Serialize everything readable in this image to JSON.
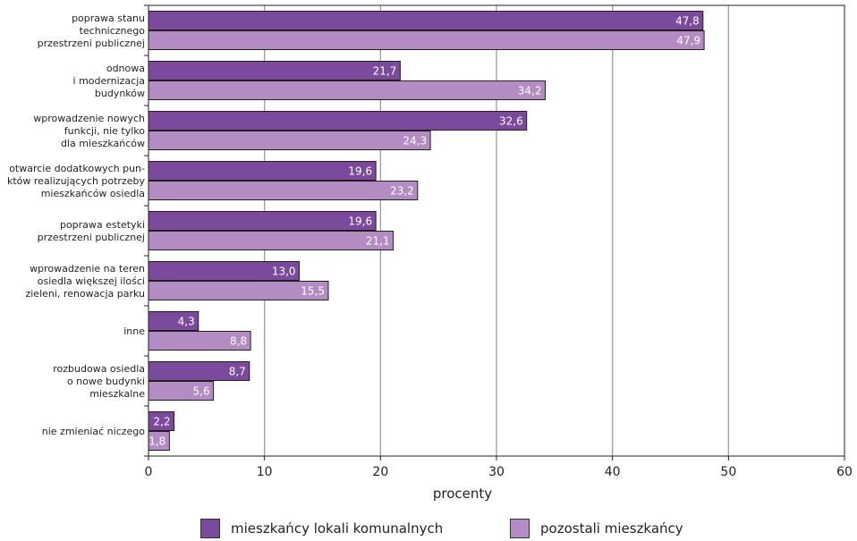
{
  "chart_data": {
    "type": "bar",
    "orientation": "horizontal",
    "categories": [
      [
        "poprawa stanu",
        "technicznego",
        "przestrzeni publicznej"
      ],
      [
        "odnowa",
        "i modernizacja",
        "budynków"
      ],
      [
        "wprowadzenie nowych",
        "funkcji, nie tylko",
        "dla mieszkańców"
      ],
      [
        "otwarcie dodatkowych pun-",
        "któw realizujących potrzeby",
        "mieszkańców osiedla"
      ],
      [
        "poprawa estetyki",
        "przestrzeni publicznej"
      ],
      [
        "wprowadzenie na teren",
        "osiedla większej ilości",
        "zieleni, renowacja parku"
      ],
      [
        "inne"
      ],
      [
        "rozbudowa osiedla",
        "o nowe budynki",
        "mieszkalne"
      ],
      [
        "nie zmieniać niczego"
      ]
    ],
    "series": [
      {
        "name": "mieszkańcy lokali komunalnych",
        "color": "#7b4a9c",
        "values": [
          47.8,
          21.7,
          32.6,
          19.6,
          19.6,
          13.0,
          4.3,
          8.7,
          2.2
        ],
        "labels": [
          "47,8",
          "21,7",
          "32,6",
          "19,6",
          "19,6",
          "13,0",
          "4,3",
          "8,7",
          "2,2"
        ]
      },
      {
        "name": "pozostali mieszkańcy",
        "color": "#b48cc4",
        "values": [
          47.9,
          34.2,
          24.3,
          23.2,
          21.1,
          15.5,
          8.8,
          5.6,
          1.8
        ],
        "labels": [
          "47,9",
          "34,2",
          "24,3",
          "23,2",
          "21,1",
          "15,5",
          "8,8",
          "5,6",
          "1,8"
        ]
      }
    ],
    "xlabel": "procenty",
    "xlim": [
      0,
      60
    ],
    "xticks": [
      "0",
      "10",
      "20",
      "30",
      "40",
      "50",
      "60"
    ],
    "grid": true,
    "legend_position": "bottom"
  }
}
